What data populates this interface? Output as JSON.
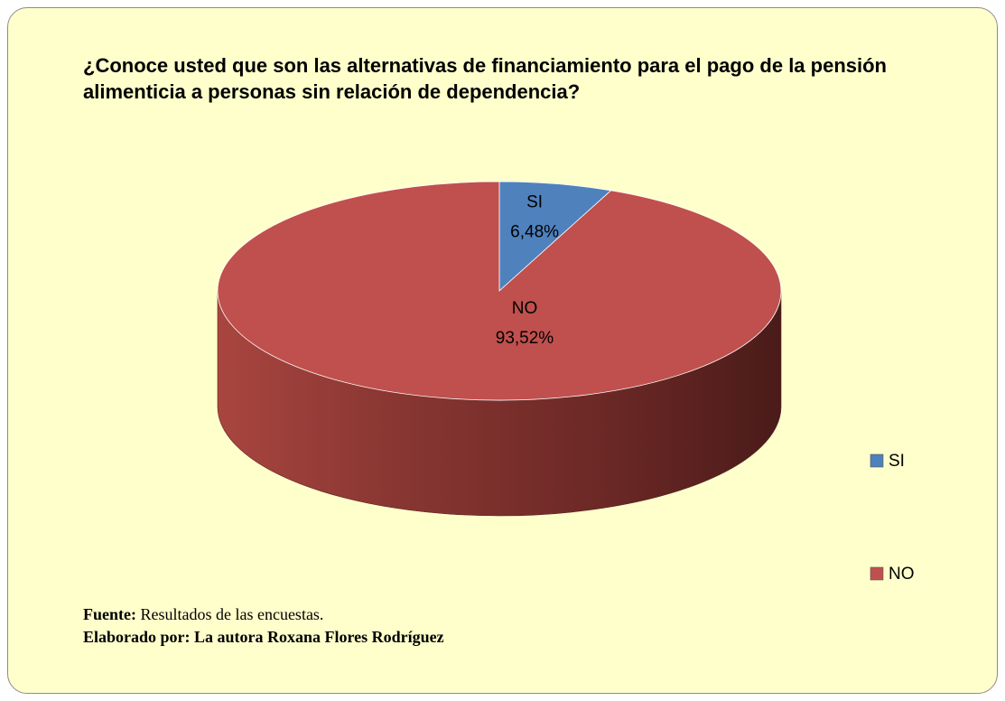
{
  "chart_data": {
    "type": "pie",
    "title": "¿Conoce usted que son las alternativas de financiamiento para el pago de la pensión alimenticia a personas sin relación de dependencia?",
    "categories": [
      "SI",
      "NO"
    ],
    "values": [
      6.48,
      93.52
    ],
    "value_labels": [
      "6,48%",
      "93,52%"
    ],
    "colors": [
      "#4f81bd",
      "#c0504d"
    ],
    "legend": "right"
  },
  "footer": {
    "source_label": "Fuente:",
    "source": "Resultados de las encuestas.",
    "credit": "Elaborado por: La autora Roxana Flores Rodríguez"
  }
}
